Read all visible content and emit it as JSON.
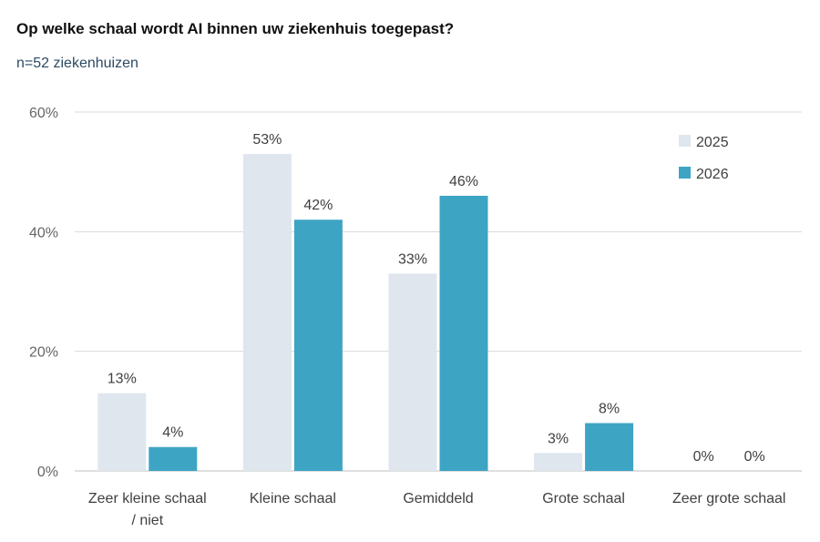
{
  "title": "Op welke schaal wordt AI binnen uw ziekenhuis toegepast?",
  "subtitle": "n=52 ziekenhuizen",
  "chart_data": {
    "type": "bar",
    "categories": [
      [
        "Zeer kleine schaal",
        "/ niet"
      ],
      [
        "Kleine schaal"
      ],
      [
        "Gemiddeld"
      ],
      [
        "Grote schaal"
      ],
      [
        "Zeer grote schaal"
      ]
    ],
    "series": [
      {
        "name": "2025",
        "values": [
          13,
          53,
          33,
          3,
          0
        ],
        "labels": [
          "13%",
          "53%",
          "33%",
          "3%",
          "0%"
        ],
        "color": "#dfe6ee"
      },
      {
        "name": "2026",
        "values": [
          4,
          42,
          46,
          8,
          0
        ],
        "labels": [
          "4%",
          "42%",
          "46%",
          "8%",
          "0%"
        ],
        "color": "#3ea4c4"
      }
    ],
    "yticks": [
      "0%",
      "20%",
      "40%",
      "60%"
    ],
    "ylim": [
      0,
      60
    ],
    "grid": true,
    "legend_position": "top-right"
  }
}
